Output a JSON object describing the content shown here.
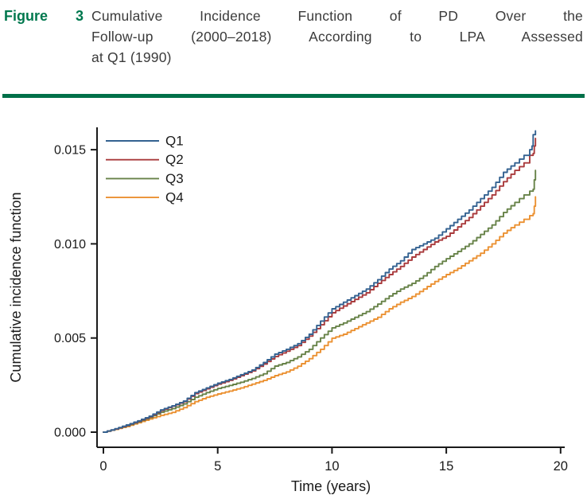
{
  "figure_header": {
    "label": "Figure 3",
    "title_lines": [
      "Cumulative Incidence Function of PD Over the",
      "Follow-up (2000–2018) According to LPA Assessed",
      "at Q1 (1990)"
    ]
  },
  "colors": {
    "header_green": "#00784e",
    "rule_green": "#007049",
    "title_text": "#3b3b3b",
    "axis_black": "#1a1a1a"
  },
  "chart_data": {
    "type": "line",
    "subtype": "cumulative-incidence-step",
    "title": "",
    "xlabel": "Time (years)",
    "ylabel": "Cumulative incidence function",
    "xlim": [
      0,
      20
    ],
    "ylim": [
      0,
      0.016
    ],
    "xticks": [
      0,
      5,
      10,
      15,
      20
    ],
    "xtick_labels": [
      "0",
      "5",
      "10",
      "15",
      "20"
    ],
    "yticks": [
      0,
      0.005,
      0.01,
      0.015
    ],
    "ytick_labels": [
      "0.000",
      "0.005",
      "0.010",
      "0.015"
    ],
    "grid": false,
    "legend_position": "top-left-inside",
    "series": [
      {
        "name": "Q1",
        "color": "#346291",
        "x": [
          0,
          0.5,
          1,
          1.5,
          2,
          2.5,
          3,
          3.5,
          4,
          4.5,
          5,
          5.5,
          6,
          6.5,
          7,
          7.5,
          8,
          8.5,
          9,
          9.5,
          10,
          10.5,
          11,
          11.5,
          12,
          12.5,
          13,
          13.5,
          14,
          14.5,
          15,
          15.5,
          16,
          16.5,
          17,
          17.5,
          18,
          18.4,
          18.65,
          18.75,
          18.8,
          18.9
        ],
        "y": [
          0,
          0.00018,
          0.00038,
          0.0006,
          0.00085,
          0.00118,
          0.0014,
          0.00165,
          0.0021,
          0.00235,
          0.0026,
          0.0028,
          0.00305,
          0.0033,
          0.0037,
          0.00414,
          0.0044,
          0.0047,
          0.0052,
          0.0059,
          0.00655,
          0.0069,
          0.00725,
          0.0076,
          0.0081,
          0.00866,
          0.0091,
          0.0097,
          0.01,
          0.0103,
          0.0108,
          0.0113,
          0.0118,
          0.0124,
          0.013,
          0.0138,
          0.0143,
          0.0147,
          0.015,
          0.0152,
          0.0158,
          0.016
        ]
      },
      {
        "name": "Q2",
        "color": "#a93a3c",
        "x": [
          0,
          0.5,
          1,
          1.5,
          2,
          2.5,
          3,
          3.5,
          4,
          4.5,
          5,
          5.5,
          6,
          6.5,
          7,
          7.5,
          8,
          8.5,
          9,
          9.5,
          10,
          10.5,
          11,
          11.5,
          12,
          12.5,
          13,
          13.5,
          14,
          14.5,
          15,
          15.5,
          16,
          16.5,
          17,
          17.5,
          18,
          18.4,
          18.65,
          18.8,
          18.85,
          18.9
        ],
        "y": [
          0,
          0.00017,
          0.00036,
          0.00058,
          0.00082,
          0.00115,
          0.00138,
          0.00162,
          0.00205,
          0.0023,
          0.00255,
          0.00275,
          0.003,
          0.00325,
          0.00362,
          0.00402,
          0.0043,
          0.0046,
          0.0051,
          0.0057,
          0.00634,
          0.0067,
          0.00705,
          0.0074,
          0.0079,
          0.00837,
          0.0088,
          0.0093,
          0.0097,
          0.0101,
          0.0104,
          0.0109,
          0.0114,
          0.012,
          0.0126,
          0.0133,
          0.0139,
          0.0143,
          0.0147,
          0.0148,
          0.0152,
          0.0156
        ]
      },
      {
        "name": "Q3",
        "color": "#678248",
        "x": [
          0,
          0.5,
          1,
          1.5,
          2,
          2.5,
          3,
          3.5,
          4,
          4.5,
          5,
          5.5,
          6,
          6.5,
          7,
          7.5,
          8,
          8.5,
          9,
          9.5,
          10,
          10.5,
          11,
          11.5,
          12,
          12.5,
          13,
          13.5,
          14,
          14.5,
          15,
          15.5,
          16,
          16.5,
          17,
          17.5,
          18,
          18.4,
          18.65,
          18.8,
          18.85,
          18.9
        ],
        "y": [
          0,
          0.00016,
          0.00034,
          0.00055,
          0.00078,
          0.00106,
          0.00125,
          0.0015,
          0.00185,
          0.0021,
          0.00232,
          0.00248,
          0.00265,
          0.00285,
          0.0031,
          0.00351,
          0.0037,
          0.004,
          0.0044,
          0.005,
          0.00554,
          0.0058,
          0.0061,
          0.0064,
          0.0068,
          0.00723,
          0.0076,
          0.0079,
          0.0083,
          0.0088,
          0.00921,
          0.0096,
          0.01,
          0.0105,
          0.011,
          0.01167,
          0.0122,
          0.0126,
          0.0128,
          0.0129,
          0.0134,
          0.0139
        ]
      },
      {
        "name": "Q4",
        "color": "#eb9132",
        "x": [
          0,
          0.5,
          1,
          1.5,
          2,
          2.5,
          3,
          3.5,
          4,
          4.5,
          5,
          5.5,
          6,
          6.5,
          7,
          7.5,
          8,
          8.5,
          9,
          9.5,
          10,
          10.5,
          11,
          11.5,
          12,
          12.5,
          13,
          13.5,
          14,
          14.5,
          15,
          15.5,
          16,
          16.5,
          17,
          17.5,
          18,
          18.4,
          18.65,
          18.8,
          18.85,
          18.9
        ],
        "y": [
          0,
          0.00015,
          0.0003,
          0.0005,
          0.0007,
          0.00089,
          0.00105,
          0.0013,
          0.00162,
          0.00185,
          0.00203,
          0.00218,
          0.00235,
          0.00255,
          0.00275,
          0.003,
          0.0032,
          0.0035,
          0.0039,
          0.0044,
          0.00499,
          0.0052,
          0.0055,
          0.0058,
          0.0061,
          0.00655,
          0.0069,
          0.0072,
          0.0076,
          0.008,
          0.00837,
          0.0087,
          0.0091,
          0.0095,
          0.01,
          0.01057,
          0.011,
          0.0113,
          0.0115,
          0.0116,
          0.012,
          0.0125
        ]
      }
    ]
  }
}
